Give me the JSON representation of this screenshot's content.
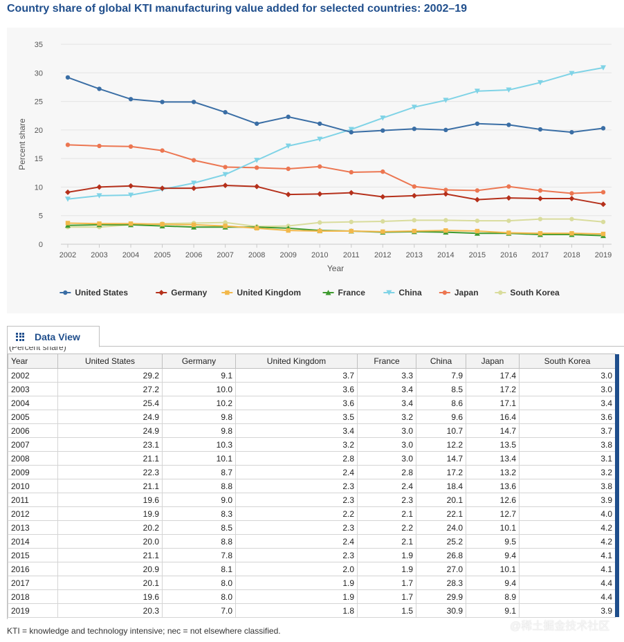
{
  "title": "Country share of global KTI manufacturing value added for selected countries: 2002–19",
  "chart_data": {
    "type": "line",
    "title": "Country share of global KTI manufacturing value added for selected countries: 2002–19",
    "xlabel": "Year",
    "ylabel": "Percent share",
    "ylim": [
      0,
      35
    ],
    "yticks": [
      0,
      5,
      10,
      15,
      20,
      25,
      30,
      35
    ],
    "x": [
      "2002",
      "2003",
      "2004",
      "2005",
      "2006",
      "2007",
      "2008",
      "2009",
      "2010",
      "2011",
      "2012",
      "2013",
      "2014",
      "2015",
      "2016",
      "2017",
      "2018",
      "2019"
    ],
    "legend_position": "bottom",
    "series": [
      {
        "name": "United States",
        "color": "#3a6ea5",
        "marker": "circle",
        "values": [
          29.2,
          27.2,
          25.4,
          24.9,
          24.9,
          23.1,
          21.1,
          22.3,
          21.1,
          19.6,
          19.9,
          20.2,
          20.0,
          21.1,
          20.9,
          20.1,
          19.6,
          20.3
        ]
      },
      {
        "name": "Germany",
        "color": "#b5301b",
        "marker": "diamond",
        "values": [
          9.1,
          10.0,
          10.2,
          9.8,
          9.8,
          10.3,
          10.1,
          8.7,
          8.8,
          9.0,
          8.3,
          8.5,
          8.8,
          7.8,
          8.1,
          8.0,
          8.0,
          7.0
        ]
      },
      {
        "name": "United Kingdom",
        "color": "#f2b84b",
        "marker": "square",
        "values": [
          3.7,
          3.6,
          3.6,
          3.5,
          3.4,
          3.2,
          2.8,
          2.4,
          2.3,
          2.3,
          2.2,
          2.3,
          2.4,
          2.3,
          2.0,
          1.9,
          1.9,
          1.8
        ]
      },
      {
        "name": "France",
        "color": "#3e9a2f",
        "marker": "triangle-up",
        "values": [
          3.3,
          3.4,
          3.4,
          3.2,
          3.0,
          3.0,
          3.0,
          2.8,
          2.4,
          2.3,
          2.1,
          2.2,
          2.1,
          1.9,
          1.9,
          1.7,
          1.7,
          1.5
        ]
      },
      {
        "name": "China",
        "color": "#7fd3e6",
        "marker": "triangle-down",
        "values": [
          7.9,
          8.5,
          8.6,
          9.6,
          10.7,
          12.2,
          14.7,
          17.2,
          18.4,
          20.1,
          22.1,
          24.0,
          25.2,
          26.8,
          27.0,
          28.3,
          29.9,
          30.9
        ]
      },
      {
        "name": "Japan",
        "color": "#ec7651",
        "marker": "circle",
        "values": [
          17.4,
          17.2,
          17.1,
          16.4,
          14.7,
          13.5,
          13.4,
          13.2,
          13.6,
          12.6,
          12.7,
          10.1,
          9.5,
          9.4,
          10.1,
          9.4,
          8.9,
          9.1
        ]
      },
      {
        "name": "South Korea",
        "color": "#d9dc9c",
        "marker": "circle",
        "values": [
          3.0,
          3.0,
          3.4,
          3.6,
          3.7,
          3.8,
          3.1,
          3.2,
          3.8,
          3.9,
          4.0,
          4.2,
          4.2,
          4.1,
          4.1,
          4.4,
          4.4,
          3.9
        ]
      }
    ]
  },
  "tab": {
    "label": "Data View",
    "icon": "grid-icon"
  },
  "table": {
    "units_note": "(Percent share)",
    "columns": [
      "Year",
      "United States",
      "Germany",
      "United Kingdom",
      "France",
      "China",
      "Japan",
      "South Korea"
    ],
    "rows": [
      [
        "2002",
        "29.2",
        "9.1",
        "3.7",
        "3.3",
        "7.9",
        "17.4",
        "3.0"
      ],
      [
        "2003",
        "27.2",
        "10.0",
        "3.6",
        "3.4",
        "8.5",
        "17.2",
        "3.0"
      ],
      [
        "2004",
        "25.4",
        "10.2",
        "3.6",
        "3.4",
        "8.6",
        "17.1",
        "3.4"
      ],
      [
        "2005",
        "24.9",
        "9.8",
        "3.5",
        "3.2",
        "9.6",
        "16.4",
        "3.6"
      ],
      [
        "2006",
        "24.9",
        "9.8",
        "3.4",
        "3.0",
        "10.7",
        "14.7",
        "3.7"
      ],
      [
        "2007",
        "23.1",
        "10.3",
        "3.2",
        "3.0",
        "12.2",
        "13.5",
        "3.8"
      ],
      [
        "2008",
        "21.1",
        "10.1",
        "2.8",
        "3.0",
        "14.7",
        "13.4",
        "3.1"
      ],
      [
        "2009",
        "22.3",
        "8.7",
        "2.4",
        "2.8",
        "17.2",
        "13.2",
        "3.2"
      ],
      [
        "2010",
        "21.1",
        "8.8",
        "2.3",
        "2.4",
        "18.4",
        "13.6",
        "3.8"
      ],
      [
        "2011",
        "19.6",
        "9.0",
        "2.3",
        "2.3",
        "20.1",
        "12.6",
        "3.9"
      ],
      [
        "2012",
        "19.9",
        "8.3",
        "2.2",
        "2.1",
        "22.1",
        "12.7",
        "4.0"
      ],
      [
        "2013",
        "20.2",
        "8.5",
        "2.3",
        "2.2",
        "24.0",
        "10.1",
        "4.2"
      ],
      [
        "2014",
        "20.0",
        "8.8",
        "2.4",
        "2.1",
        "25.2",
        "9.5",
        "4.2"
      ],
      [
        "2015",
        "21.1",
        "7.8",
        "2.3",
        "1.9",
        "26.8",
        "9.4",
        "4.1"
      ],
      [
        "2016",
        "20.9",
        "8.1",
        "2.0",
        "1.9",
        "27.0",
        "10.1",
        "4.1"
      ],
      [
        "2017",
        "20.1",
        "8.0",
        "1.9",
        "1.7",
        "28.3",
        "9.4",
        "4.4"
      ],
      [
        "2018",
        "19.6",
        "8.0",
        "1.9",
        "1.7",
        "29.9",
        "8.9",
        "4.4"
      ],
      [
        "2019",
        "20.3",
        "7.0",
        "1.8",
        "1.5",
        "30.9",
        "9.1",
        "3.9"
      ]
    ]
  },
  "footnote": "KTI = knowledge and technology intensive; nec = not elsewhere classified.",
  "watermark": "@稀土掘金技术社区"
}
